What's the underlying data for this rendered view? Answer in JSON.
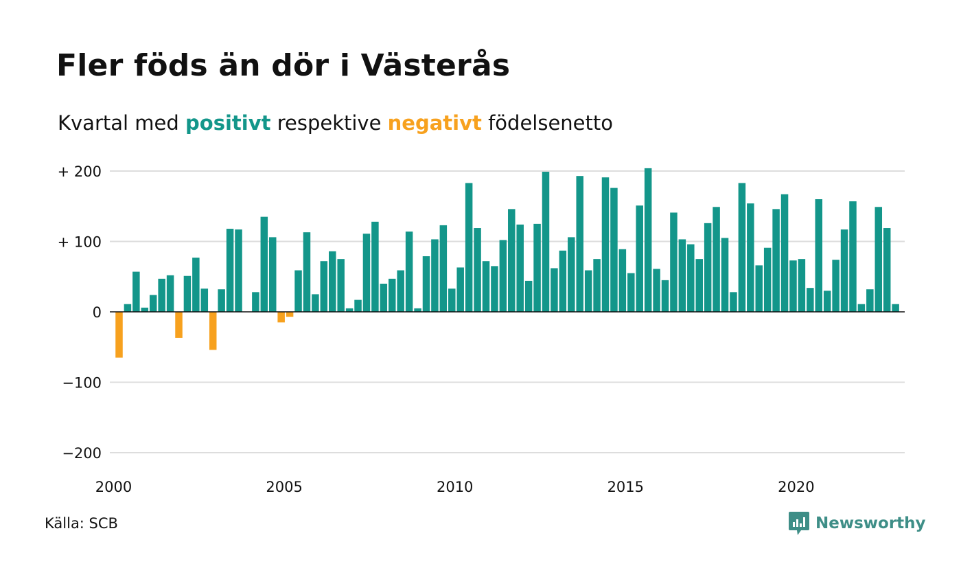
{
  "title": "Fler föds än dör i Västerås",
  "subtitle": {
    "prefix": "Kvartal med",
    "positive": "positivt",
    "middle": "respektive",
    "negative": "negativt",
    "suffix": "födelsenetto"
  },
  "source": "Källa: SCB",
  "brand": "Newsworthy",
  "colors": {
    "positive": "#13968a",
    "negative": "#f7a11e",
    "grid": "#dddddd",
    "zero": "#111111",
    "brand": "#3e8e87"
  },
  "chart_data": {
    "type": "bar",
    "x_start": "2000 Q1",
    "x_step": "quarter",
    "values": [
      -65,
      11,
      57,
      6,
      24,
      47,
      52,
      -37,
      51,
      77,
      33,
      -54,
      32,
      118,
      117,
      0,
      28,
      135,
      106,
      -15,
      -7,
      59,
      113,
      25,
      72,
      86,
      75,
      5,
      17,
      111,
      128,
      40,
      47,
      59,
      114,
      5,
      79,
      103,
      123,
      33,
      63,
      183,
      119,
      72,
      65,
      102,
      146,
      124,
      44,
      125,
      199,
      62,
      87,
      106,
      193,
      59,
      75,
      191,
      176,
      89,
      55,
      151,
      204,
      61,
      45,
      141,
      103,
      96,
      75,
      126,
      149,
      105,
      28,
      183,
      154,
      66,
      91,
      146,
      167,
      73,
      75,
      34,
      160,
      30,
      74,
      117,
      157,
      11,
      32,
      149,
      119,
      11
    ],
    "y_ticks": [
      {
        "value": 200,
        "label": "+ 200"
      },
      {
        "value": 100,
        "label": "+ 100"
      },
      {
        "value": 0,
        "label": "0"
      },
      {
        "value": -100,
        "label": "−100"
      },
      {
        "value": -200,
        "label": "−200"
      }
    ],
    "x_ticks": [
      {
        "quarter_index": 0,
        "label": "2000"
      },
      {
        "quarter_index": 20,
        "label": "2005"
      },
      {
        "quarter_index": 40,
        "label": "2010"
      },
      {
        "quarter_index": 60,
        "label": "2015"
      },
      {
        "quarter_index": 80,
        "label": "2020"
      }
    ],
    "ylim": [
      -200,
      200
    ],
    "grid": true
  }
}
